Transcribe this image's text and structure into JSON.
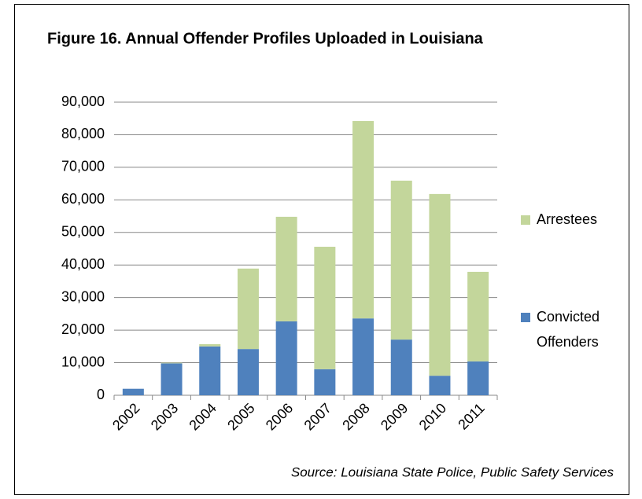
{
  "chart_data": {
    "type": "stacked_bar",
    "title": "Figure 16.  Annual Offender Profiles Uploaded in Louisiana",
    "source": "Source:  Louisiana State Police, Public Safety Services",
    "categories": [
      "2002",
      "2003",
      "2004",
      "2005",
      "2006",
      "2007",
      "2008",
      "2009",
      "2010",
      "2011"
    ],
    "series": [
      {
        "name": "Convicted Offenders",
        "color": "#4f81bd",
        "values": [
          2000,
          9800,
          15000,
          14200,
          22700,
          8000,
          23600,
          17100,
          6000,
          10400
        ]
      },
      {
        "name": "Arrestees",
        "color": "#c3d69b",
        "values": [
          0,
          200,
          700,
          24700,
          32100,
          37600,
          60600,
          48800,
          55800,
          27500
        ]
      }
    ],
    "ylim": [
      0,
      90000
    ],
    "yticks": [
      0,
      {
        "value": 10000,
        "label": "10,000"
      },
      {
        "value": 20000,
        "label": "20,000"
      },
      {
        "value": 30000,
        "label": "30,000"
      },
      {
        "value": 40000,
        "label": "40,000"
      },
      {
        "value": 50000,
        "label": "50,000"
      },
      {
        "value": 60000,
        "label": "60,000"
      },
      {
        "value": 70000,
        "label": "70,000"
      },
      {
        "value": 80000,
        "label": "80,000"
      },
      {
        "value": 90000,
        "label": "90,000"
      }
    ],
    "grid": true,
    "legend": "right"
  }
}
